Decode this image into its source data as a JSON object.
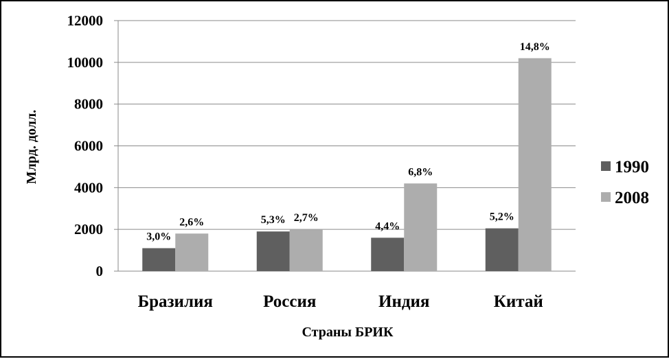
{
  "chart_data": {
    "type": "bar",
    "categories": [
      "Бразилия",
      "Россия",
      "Индия",
      "Китай"
    ],
    "series": [
      {
        "name": "1990",
        "values": [
          1100,
          1900,
          1600,
          2050
        ],
        "labels": [
          "3,0%",
          "5,3%",
          "4,4%",
          "5,2%"
        ],
        "color": "#5f5f5f"
      },
      {
        "name": "2008",
        "values": [
          1800,
          2000,
          4200,
          10200
        ],
        "labels": [
          "2,6%",
          "2,7%",
          "6,8%",
          "14,8%"
        ],
        "color": "#adadad"
      }
    ],
    "title": "",
    "xlabel": "Страны БРИК",
    "ylabel": "Млрд. долл.",
    "ylim": [
      0,
      12000
    ],
    "yticks": [
      "0",
      "2000",
      "4000",
      "6000",
      "8000",
      "10000",
      "12000"
    ],
    "grid": true,
    "legend_position": "right"
  }
}
